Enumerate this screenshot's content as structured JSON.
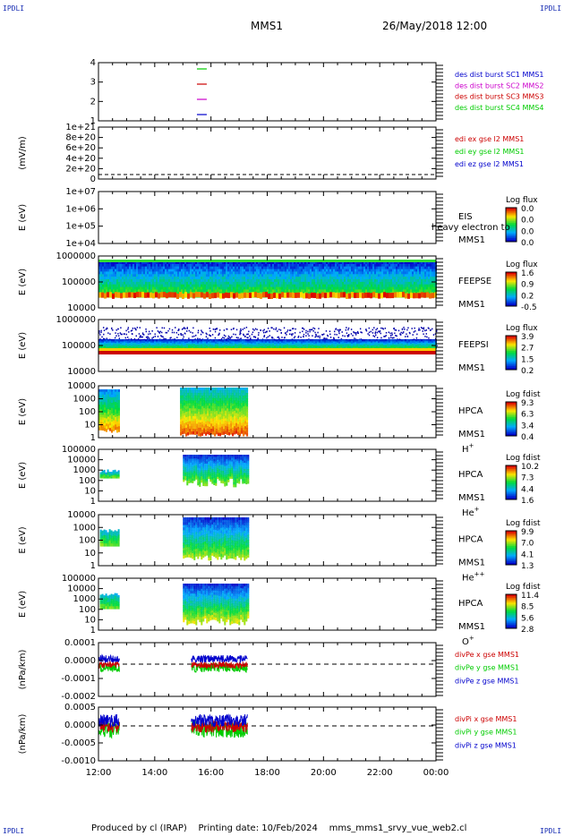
{
  "header": {
    "corner_label": "IPDLI",
    "mission": "MMS1",
    "datetime": "26/May/2018 12:00"
  },
  "footer": {
    "produced_by": "Produced by cl (IRAP)",
    "printing_date": "Printing date: 10/Feb/2024",
    "file": "mms_mms1_srvy_vue_web2.cl"
  },
  "colors": {
    "frame": "#000000",
    "blue": "#0000cc",
    "red": "#cc0000",
    "green": "#00cc00",
    "magenta": "#cc00cc"
  },
  "chart_data": {
    "type": "stacked-time-series",
    "x_tick_labels": [
      "12:00",
      "14:00",
      "16:00",
      "18:00",
      "20:00",
      "22:00",
      "00:00"
    ],
    "panels": [
      {
        "id": "burst",
        "ylabel": "",
        "y_ticks": [
          "4",
          "3",
          "2",
          "1"
        ],
        "legend": [
          {
            "text": "des dist burst SC1 MMS1",
            "color": "#0000cc"
          },
          {
            "text": "des dist burst SC2 MMS2",
            "color": "#cc00cc"
          },
          {
            "text": "des dist burst SC3 MMS3",
            "color": "#cc0000"
          },
          {
            "text": "des dist burst SC4 MMS4",
            "color": "#00cc00"
          }
        ]
      },
      {
        "id": "edi",
        "ylabel": "(mV/m)",
        "y_ticks": [
          "1e+21",
          "8e+20",
          "6e+20",
          "4e+20",
          "2e+20",
          "0"
        ],
        "legend": [
          {
            "text": "edi ex gse l2 MMS1",
            "color": "#cc0000"
          },
          {
            "text": "edi ey gse l2 MMS1",
            "color": "#00cc00"
          },
          {
            "text": "edi ez gse l2 MMS1",
            "color": "#0000cc"
          }
        ]
      },
      {
        "id": "eis",
        "ylabel": "E (eV)",
        "y_ticks": [
          "1e+07",
          "1e+06",
          "1e+05",
          "1e+04"
        ],
        "instrument": [
          "EIS",
          "MMS1"
        ],
        "overlay": "heavy electron to",
        "cbar_title": "Log flux",
        "cbar_ticks": [
          "0.0",
          "0.0",
          "0.0",
          "0.0"
        ]
      },
      {
        "id": "feepse",
        "ylabel": "E (eV)",
        "y_ticks": [
          "1000000",
          "100000",
          "10000"
        ],
        "instrument": [
          "FEEPSE",
          "MMS1"
        ],
        "cbar_title": "Log flux",
        "cbar_ticks": [
          "1.6",
          "0.9",
          "0.2",
          "-0.5"
        ]
      },
      {
        "id": "feepsi",
        "ylabel": "E (eV)",
        "y_ticks": [
          "1000000",
          "100000",
          "10000"
        ],
        "instrument": [
          "FEEPSI",
          "MMS1"
        ],
        "cbar_title": "Log flux",
        "cbar_ticks": [
          "3.9",
          "2.7",
          "1.5",
          "0.2"
        ]
      },
      {
        "id": "hpca_h",
        "ylabel": "E (eV)",
        "y_ticks": [
          "10000",
          "1000",
          "100",
          "10",
          "1"
        ],
        "instrument": [
          "HPCA",
          "MMS1"
        ],
        "species": "H",
        "species_sup": "+",
        "cbar_title": "Log fdist",
        "cbar_ticks": [
          "9.3",
          "6.3",
          "3.4",
          "0.4"
        ]
      },
      {
        "id": "hpca_he",
        "ylabel": "E (eV)",
        "y_ticks": [
          "100000",
          "10000",
          "1000",
          "100",
          "10",
          "1"
        ],
        "instrument": [
          "HPCA",
          "MMS1"
        ],
        "species": "He",
        "species_sup": "+",
        "cbar_title": "Log fdist",
        "cbar_ticks": [
          "10.2",
          "7.3",
          "4.4",
          "1.6"
        ]
      },
      {
        "id": "hpca_hepp",
        "ylabel": "E (eV)",
        "y_ticks": [
          "10000",
          "1000",
          "100",
          "10",
          "1"
        ],
        "instrument": [
          "HPCA",
          "MMS1"
        ],
        "species": "He",
        "species_sup": "++",
        "cbar_title": "Log fdist",
        "cbar_ticks": [
          "9.9",
          "7.0",
          "4.1",
          "1.3"
        ]
      },
      {
        "id": "hpca_o",
        "ylabel": "E (eV)",
        "y_ticks": [
          "100000",
          "10000",
          "1000",
          "100",
          "10",
          "1"
        ],
        "instrument": [
          "HPCA",
          "MMS1"
        ],
        "species": "O",
        "species_sup": "+",
        "cbar_title": "Log fdist",
        "cbar_ticks": [
          "11.4",
          "8.5",
          "5.6",
          "2.8"
        ]
      },
      {
        "id": "divpe",
        "ylabel": "(nPa/km)",
        "y_ticks": [
          "0.0001",
          "0.0000",
          "-0.0001",
          "-0.0002"
        ],
        "legend": [
          {
            "text": "divPe x gse MMS1",
            "color": "#cc0000"
          },
          {
            "text": "divPe y gse MMS1",
            "color": "#00cc00"
          },
          {
            "text": "divPe z gse MMS1",
            "color": "#0000cc"
          }
        ]
      },
      {
        "id": "divpi",
        "ylabel": "(nPa/km)",
        "y_ticks": [
          "0.0005",
          "0.0000",
          "-0.0005",
          "-0.0010"
        ],
        "legend": [
          {
            "text": "divPi x gse MMS1",
            "color": "#cc0000"
          },
          {
            "text": "divPi y gse MMS1",
            "color": "#00cc00"
          },
          {
            "text": "divPi z gse MMS1",
            "color": "#0000cc"
          }
        ]
      }
    ]
  }
}
